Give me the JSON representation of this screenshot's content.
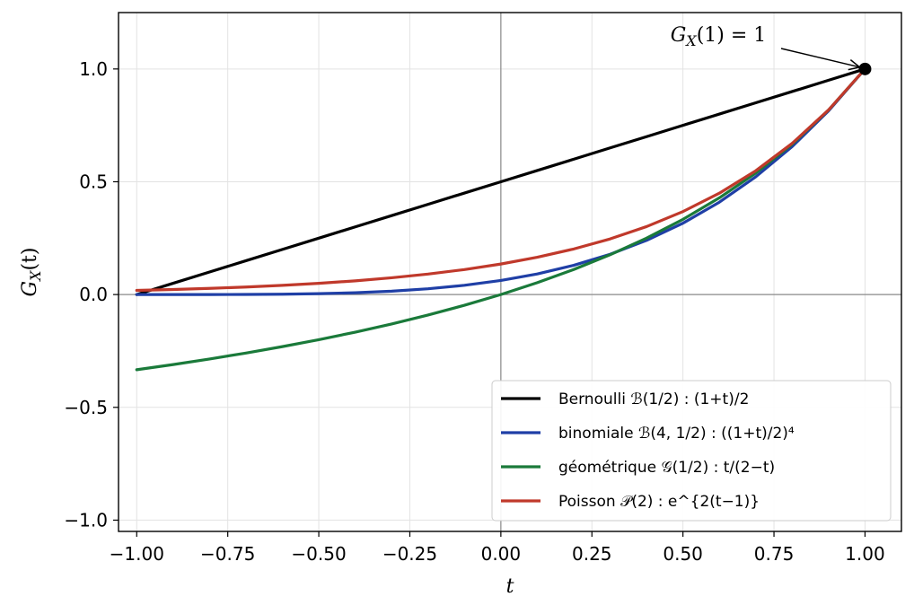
{
  "chart_data": {
    "type": "line",
    "xlabel": "t",
    "ylabel": "G_X(t)",
    "xlim": [
      -1.05,
      1.1
    ],
    "ylim": [
      -1.05,
      1.25
    ],
    "x_ticks": [
      -1.0,
      -0.75,
      -0.5,
      -0.25,
      0.0,
      0.25,
      0.5,
      0.75,
      1.0
    ],
    "x_tick_labels": [
      "−1.00",
      "−0.75",
      "−0.50",
      "−0.25",
      "0.00",
      "0.25",
      "0.50",
      "0.75",
      "1.00"
    ],
    "y_ticks": [
      -1.0,
      -0.5,
      0.0,
      0.5,
      1.0
    ],
    "y_tick_labels": [
      "−1.0",
      "−0.5",
      "0.0",
      "0.5",
      "1.0"
    ],
    "grid": true,
    "legend_position": "lower-right",
    "x": [
      -1.0,
      -0.9,
      -0.8,
      -0.7,
      -0.6,
      -0.5,
      -0.4,
      -0.3,
      -0.2,
      -0.1,
      0.0,
      0.1,
      0.2,
      0.3,
      0.4,
      0.5,
      0.6,
      0.7,
      0.8,
      0.9,
      1.0
    ],
    "series": [
      {
        "name": "Bernoulli ℬ(1/2) : (1+t)/2",
        "color": "#000000",
        "values": [
          0.0,
          0.05,
          0.1,
          0.15,
          0.2,
          0.25,
          0.3,
          0.35,
          0.4,
          0.45,
          0.5,
          0.55,
          0.6,
          0.65,
          0.7,
          0.75,
          0.8,
          0.85,
          0.9,
          0.95,
          1.0
        ]
      },
      {
        "name": "binomiale ℬ(4, 1/2) : ((1+t)/2)⁴",
        "color": "#1f3fa6",
        "values": [
          0.0,
          0.0,
          0.0001,
          0.0005,
          0.0016,
          0.0039,
          0.0081,
          0.015,
          0.0256,
          0.041,
          0.0625,
          0.0915,
          0.1296,
          0.1785,
          0.2401,
          0.3164,
          0.4096,
          0.522,
          0.6561,
          0.8145,
          1.0
        ]
      },
      {
        "name": "géométrique 𝒢(1/2) : t/(2−t)",
        "color": "#1a7a3a",
        "values": [
          -0.3333,
          -0.3103,
          -0.2857,
          -0.2593,
          -0.2308,
          -0.2,
          -0.1667,
          -0.1304,
          -0.0909,
          -0.0476,
          0.0,
          0.0526,
          0.1111,
          0.1765,
          0.25,
          0.3333,
          0.4286,
          0.5385,
          0.6667,
          0.8182,
          1.0
        ]
      },
      {
        "name": "Poisson 𝒫(2) : e^{2(t−1)}",
        "color": "#c0392b",
        "values": [
          0.0183,
          0.0224,
          0.0273,
          0.0334,
          0.0408,
          0.0498,
          0.0608,
          0.0743,
          0.0907,
          0.1108,
          0.1353,
          0.1653,
          0.2019,
          0.2466,
          0.3012,
          0.3679,
          0.4493,
          0.5488,
          0.6703,
          0.8187,
          1.0
        ]
      }
    ],
    "highlight_point": {
      "x": 1.0,
      "y": 1.0
    },
    "annotation": {
      "text": "G_X(1) = 1",
      "target_x": 1.0,
      "target_y": 1.0
    }
  }
}
